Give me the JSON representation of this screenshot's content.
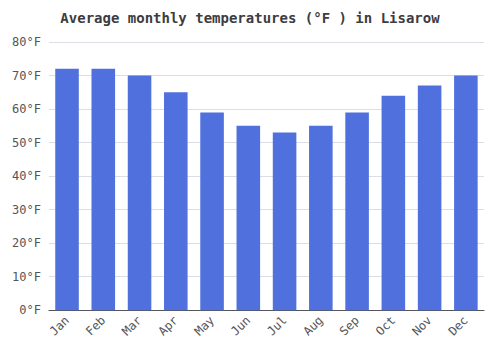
{
  "chart_data": {
    "type": "bar",
    "title": "Average monthly temperatures (°F ) in Lisarow",
    "categories": [
      "Jan",
      "Feb",
      "Mar",
      "Apr",
      "May",
      "Jun",
      "Jul",
      "Aug",
      "Sep",
      "Oct",
      "Nov",
      "Dec"
    ],
    "values": [
      72,
      72,
      70,
      65,
      59,
      55,
      53,
      55,
      59,
      64,
      67,
      70
    ],
    "ylim": [
      0,
      80
    ],
    "yticks": [
      {
        "value": 0,
        "label": "0°F"
      },
      {
        "value": 10,
        "label": "10°F"
      },
      {
        "value": 20,
        "label": "20°F"
      },
      {
        "value": 30,
        "label": "30°F"
      },
      {
        "value": 40,
        "label": "40°F"
      },
      {
        "value": 50,
        "label": "50°F"
      },
      {
        "value": 60,
        "label": "60°F"
      },
      {
        "value": 70,
        "label": "70°F"
      },
      {
        "value": 80,
        "label": "80°F"
      }
    ],
    "grid": true
  }
}
